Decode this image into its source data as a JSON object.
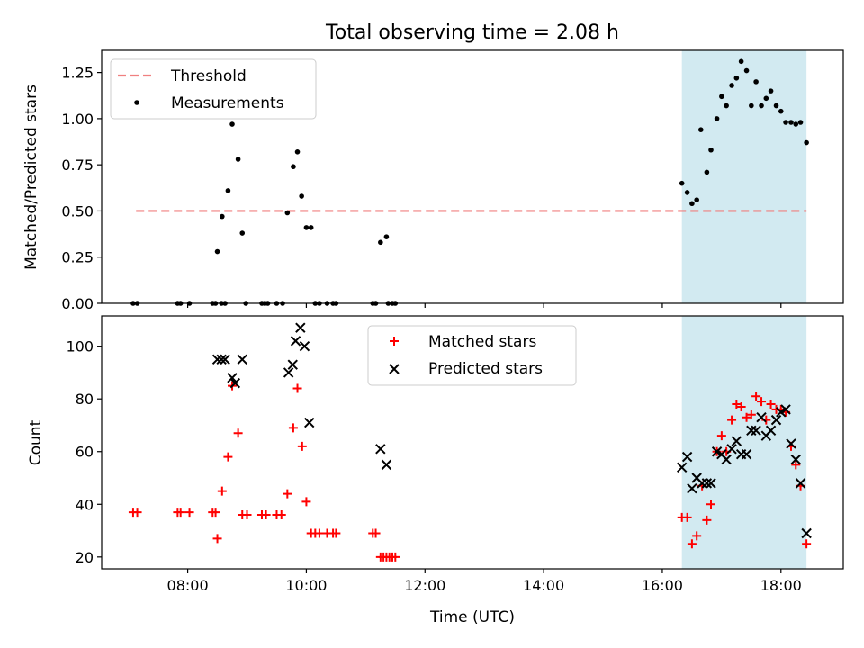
{
  "title": "Total observing time = 2.08 h",
  "colors": {
    "threshold": "#f08080",
    "measurements": "#000000",
    "matched": "#ff0000",
    "predicted": "#000000",
    "shade": "#add8e6"
  },
  "chart_data": [
    {
      "type": "scatter",
      "ylabel": "Matched/Predicted stars",
      "xlim": [
        6.55,
        19.05
      ],
      "ylim": [
        0,
        1.37
      ],
      "yticks": [
        0.0,
        0.25,
        0.5,
        0.75,
        1.0,
        1.25
      ],
      "ytick_labels": [
        "0.00",
        "0.25",
        "0.50",
        "0.75",
        "1.00",
        "1.25"
      ],
      "legend": {
        "position": "top-left",
        "entries": [
          "Threshold",
          "Measurements"
        ]
      },
      "shaded_x": [
        16.33,
        18.43
      ],
      "threshold": {
        "name": "Threshold",
        "x": [
          7.13,
          18.43
        ],
        "y": 0.5,
        "style": "dashed"
      },
      "series": [
        {
          "name": "Measurements",
          "points": [
            [
              7.08,
              0
            ],
            [
              7.15,
              0
            ],
            [
              7.83,
              0
            ],
            [
              7.88,
              0
            ],
            [
              8.03,
              0
            ],
            [
              8.42,
              0
            ],
            [
              8.47,
              0
            ],
            [
              8.5,
              0.28
            ],
            [
              8.57,
              0
            ],
            [
              8.58,
              0.47
            ],
            [
              8.63,
              0
            ],
            [
              8.68,
              0.61
            ],
            [
              8.75,
              0.97
            ],
            [
              8.85,
              0.78
            ],
            [
              8.92,
              0.38
            ],
            [
              8.98,
              0
            ],
            [
              9.25,
              0
            ],
            [
              9.3,
              0
            ],
            [
              9.35,
              0
            ],
            [
              9.5,
              0
            ],
            [
              9.6,
              0
            ],
            [
              9.68,
              0.49
            ],
            [
              9.78,
              0.74
            ],
            [
              9.85,
              0.82
            ],
            [
              9.92,
              0.58
            ],
            [
              10.0,
              0.41
            ],
            [
              10.08,
              0.41
            ],
            [
              10.15,
              0
            ],
            [
              10.22,
              0
            ],
            [
              10.35,
              0
            ],
            [
              10.45,
              0
            ],
            [
              10.5,
              0
            ],
            [
              11.12,
              0
            ],
            [
              11.17,
              0
            ],
            [
              11.25,
              0.33
            ],
            [
              11.35,
              0.36
            ],
            [
              11.38,
              0
            ],
            [
              11.45,
              0
            ],
            [
              11.5,
              0
            ],
            [
              16.33,
              0.65
            ],
            [
              16.42,
              0.6
            ],
            [
              16.5,
              0.54
            ],
            [
              16.58,
              0.56
            ],
            [
              16.65,
              0.94
            ],
            [
              16.75,
              0.71
            ],
            [
              16.82,
              0.83
            ],
            [
              16.92,
              1.0
            ],
            [
              17.0,
              1.12
            ],
            [
              17.08,
              1.07
            ],
            [
              17.17,
              1.18
            ],
            [
              17.25,
              1.22
            ],
            [
              17.33,
              1.31
            ],
            [
              17.42,
              1.26
            ],
            [
              17.5,
              1.07
            ],
            [
              17.58,
              1.2
            ],
            [
              17.67,
              1.07
            ],
            [
              17.75,
              1.11
            ],
            [
              17.83,
              1.15
            ],
            [
              17.92,
              1.07
            ],
            [
              18.0,
              1.04
            ],
            [
              18.08,
              0.98
            ],
            [
              18.17,
              0.98
            ],
            [
              18.25,
              0.97
            ],
            [
              18.33,
              0.98
            ],
            [
              18.43,
              0.87
            ]
          ]
        }
      ]
    },
    {
      "type": "scatter",
      "xlabel": "Time (UTC)",
      "ylabel": "Count",
      "xlim": [
        6.55,
        19.05
      ],
      "ylim": [
        15.5,
        111.5
      ],
      "xticks": [
        8,
        10,
        12,
        14,
        16,
        18
      ],
      "xtick_labels": [
        "08:00",
        "10:00",
        "12:00",
        "14:00",
        "16:00",
        "18:00"
      ],
      "yticks": [
        20,
        40,
        60,
        80,
        100
      ],
      "ytick_labels": [
        "20",
        "40",
        "60",
        "80",
        "100"
      ],
      "legend": {
        "position": "upper center",
        "entries": [
          "Matched stars",
          "Predicted stars"
        ]
      },
      "shaded_x": [
        16.33,
        18.43
      ],
      "series": [
        {
          "name": "Matched stars",
          "marker": "+",
          "points": [
            [
              7.08,
              37
            ],
            [
              7.15,
              37
            ],
            [
              7.83,
              37
            ],
            [
              7.88,
              37
            ],
            [
              8.03,
              37
            ],
            [
              8.42,
              37
            ],
            [
              8.47,
              37
            ],
            [
              8.5,
              27
            ],
            [
              8.58,
              45
            ],
            [
              8.68,
              58
            ],
            [
              8.75,
              85
            ],
            [
              8.85,
              67
            ],
            [
              8.92,
              36
            ],
            [
              9.0,
              36
            ],
            [
              9.25,
              36
            ],
            [
              9.32,
              36
            ],
            [
              9.5,
              36
            ],
            [
              9.58,
              36
            ],
            [
              9.68,
              44
            ],
            [
              9.78,
              69
            ],
            [
              9.85,
              84
            ],
            [
              9.93,
              62
            ],
            [
              10.0,
              41
            ],
            [
              10.08,
              29
            ],
            [
              10.15,
              29
            ],
            [
              10.22,
              29
            ],
            [
              10.35,
              29
            ],
            [
              10.45,
              29
            ],
            [
              10.5,
              29
            ],
            [
              11.12,
              29
            ],
            [
              11.17,
              29
            ],
            [
              11.25,
              20
            ],
            [
              11.3,
              20
            ],
            [
              11.35,
              20
            ],
            [
              11.4,
              20
            ],
            [
              11.45,
              20
            ],
            [
              11.5,
              20
            ],
            [
              16.33,
              35
            ],
            [
              16.42,
              35
            ],
            [
              16.5,
              25
            ],
            [
              16.58,
              28
            ],
            [
              16.67,
              47
            ],
            [
              16.75,
              34
            ],
            [
              16.82,
              40
            ],
            [
              16.92,
              60
            ],
            [
              17.0,
              66
            ],
            [
              17.08,
              60
            ],
            [
              17.17,
              72
            ],
            [
              17.25,
              78
            ],
            [
              17.33,
              77
            ],
            [
              17.42,
              73
            ],
            [
              17.5,
              74
            ],
            [
              17.58,
              81
            ],
            [
              17.67,
              79
            ],
            [
              17.75,
              72
            ],
            [
              17.83,
              78
            ],
            [
              17.92,
              76
            ],
            [
              18.0,
              76
            ],
            [
              18.08,
              75
            ],
            [
              18.17,
              62
            ],
            [
              18.25,
              55
            ],
            [
              18.33,
              47
            ],
            [
              18.43,
              25
            ]
          ]
        },
        {
          "name": "Predicted stars",
          "marker": "x",
          "points": [
            [
              8.5,
              95
            ],
            [
              8.57,
              95
            ],
            [
              8.63,
              95
            ],
            [
              8.75,
              88
            ],
            [
              8.8,
              86
            ],
            [
              8.92,
              95
            ],
            [
              9.7,
              90
            ],
            [
              9.77,
              93
            ],
            [
              9.82,
              102
            ],
            [
              9.9,
              107
            ],
            [
              9.97,
              100
            ],
            [
              10.05,
              71
            ],
            [
              11.25,
              61
            ],
            [
              11.35,
              55
            ],
            [
              16.33,
              54
            ],
            [
              16.42,
              58
            ],
            [
              16.5,
              46
            ],
            [
              16.58,
              50
            ],
            [
              16.67,
              48
            ],
            [
              16.75,
              48
            ],
            [
              16.82,
              48
            ],
            [
              16.92,
              60
            ],
            [
              17.0,
              59
            ],
            [
              17.08,
              57
            ],
            [
              17.17,
              61
            ],
            [
              17.25,
              64
            ],
            [
              17.33,
              59
            ],
            [
              17.42,
              59
            ],
            [
              17.5,
              68
            ],
            [
              17.58,
              68
            ],
            [
              17.67,
              73
            ],
            [
              17.75,
              66
            ],
            [
              17.83,
              68
            ],
            [
              17.92,
              72
            ],
            [
              18.0,
              75
            ],
            [
              18.08,
              76
            ],
            [
              18.17,
              63
            ],
            [
              18.25,
              57
            ],
            [
              18.33,
              48
            ],
            [
              18.43,
              29
            ]
          ]
        }
      ]
    }
  ]
}
